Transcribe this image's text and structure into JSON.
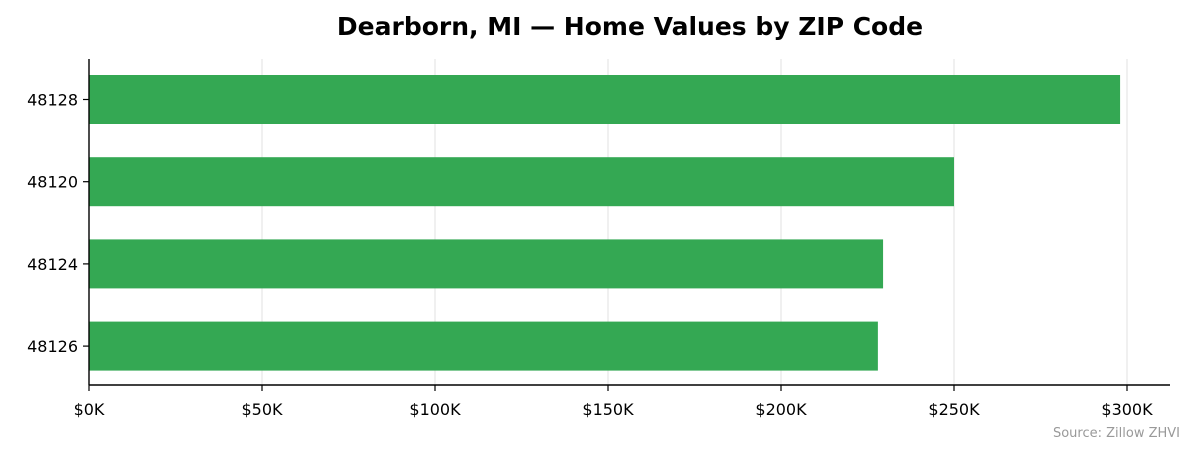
{
  "chart_data": {
    "type": "bar",
    "orientation": "horizontal",
    "title": "Dearborn, MI — Home Values by ZIP Code",
    "xlabel": "",
    "ylabel": "",
    "categories": [
      "48128",
      "48120",
      "48124",
      "48126"
    ],
    "values": [
      298000,
      250000,
      229500,
      228000
    ],
    "xlim": [
      0,
      312000
    ],
    "xticks": [
      0,
      50000,
      100000,
      150000,
      200000,
      250000,
      300000
    ],
    "xtick_labels": [
      "$0K",
      "$50K",
      "$100K",
      "$150K",
      "$200K",
      "$250K",
      "$300K"
    ],
    "bar_color": "#34a853",
    "grid": "vertical",
    "source": "Source: Zillow ZHVI"
  }
}
